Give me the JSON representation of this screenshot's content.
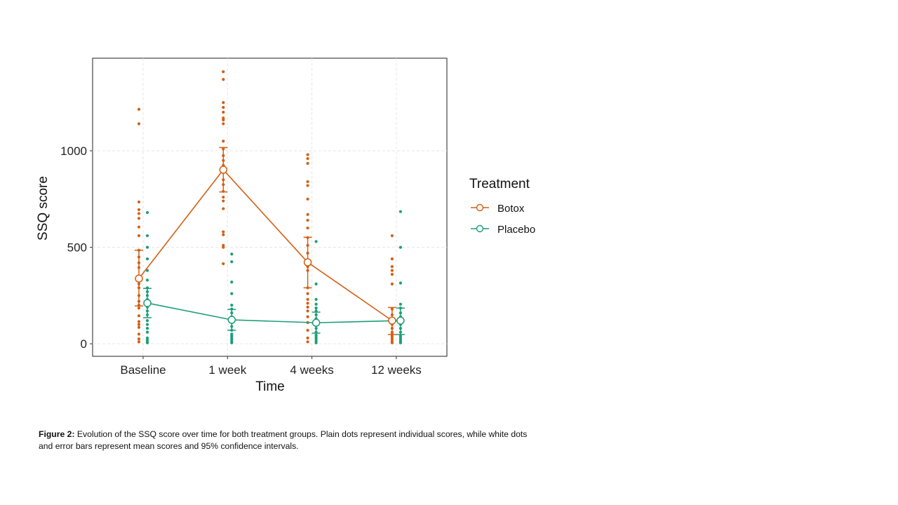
{
  "caption": {
    "label": "Figure 2:",
    "text": " Evolution of the SSQ score over time for both treatment groups. Plain dots represent individual scores, while white dots and error bars represent mean scores and 95% confidence intervals."
  },
  "chart_data": {
    "type": "scatter",
    "title": "",
    "xlabel": "Time",
    "ylabel": "SSQ score",
    "categories": [
      "Baseline",
      "1 week",
      "4 weeks",
      "12 weeks"
    ],
    "ylim": [
      -65,
      1480
    ],
    "yticks": [
      0,
      500,
      1000
    ],
    "ytick_labels": [
      "0",
      "500",
      "1000"
    ],
    "grid": true,
    "legend": {
      "title": "Treatment",
      "position": "right"
    },
    "series": [
      {
        "name": "Botox",
        "color": "#D35F14",
        "means": [
          338,
          902,
          422,
          120
        ],
        "ci_low": [
          196,
          787,
          290,
          48
        ],
        "ci_high": [
          485,
          1017,
          552,
          188
        ],
        "points": [
          [
            1215,
            1140,
            735,
            695,
            675,
            650,
            605,
            560,
            485,
            450,
            420,
            395,
            350,
            310,
            290,
            250,
            220,
            200,
            185,
            145,
            115,
            100,
            85,
            50,
            25,
            10
          ],
          [
            1410,
            1370,
            1250,
            1225,
            1200,
            1170,
            1160,
            1140,
            1050,
            1010,
            975,
            950,
            925,
            900,
            850,
            825,
            790,
            760,
            740,
            700,
            580,
            565,
            510,
            500,
            415
          ],
          [
            980,
            960,
            935,
            840,
            820,
            750,
            670,
            640,
            600,
            550,
            510,
            470,
            400,
            380,
            290,
            260,
            230,
            210,
            190,
            170,
            140,
            110,
            70,
            30,
            10
          ],
          [
            560,
            440,
            400,
            380,
            360,
            310,
            180,
            150,
            120,
            100,
            80,
            60,
            50,
            40,
            30,
            20,
            10,
            5
          ]
        ]
      },
      {
        "name": "Placebo",
        "color": "#1B9E77",
        "means": [
          211,
          124,
          109,
          120
        ],
        "ci_low": [
          135,
          70,
          55,
          48
        ],
        "ci_high": [
          287,
          178,
          164,
          185
        ],
        "points": [
          [
            680,
            560,
            500,
            440,
            380,
            330,
            290,
            270,
            250,
            230,
            210,
            190,
            170,
            150,
            120,
            100,
            80,
            60,
            30,
            20,
            10,
            5
          ],
          [
            465,
            425,
            320,
            260,
            200,
            180,
            160,
            140,
            110,
            90,
            70,
            50,
            40,
            30,
            20,
            10,
            5
          ],
          [
            530,
            310,
            230,
            205,
            185,
            170,
            150,
            130,
            100,
            80,
            60,
            45,
            35,
            25,
            15,
            5
          ],
          [
            685,
            500,
            315,
            205,
            185,
            160,
            140,
            120,
            100,
            80,
            60,
            40,
            30,
            20,
            10,
            5
          ]
        ]
      }
    ]
  }
}
